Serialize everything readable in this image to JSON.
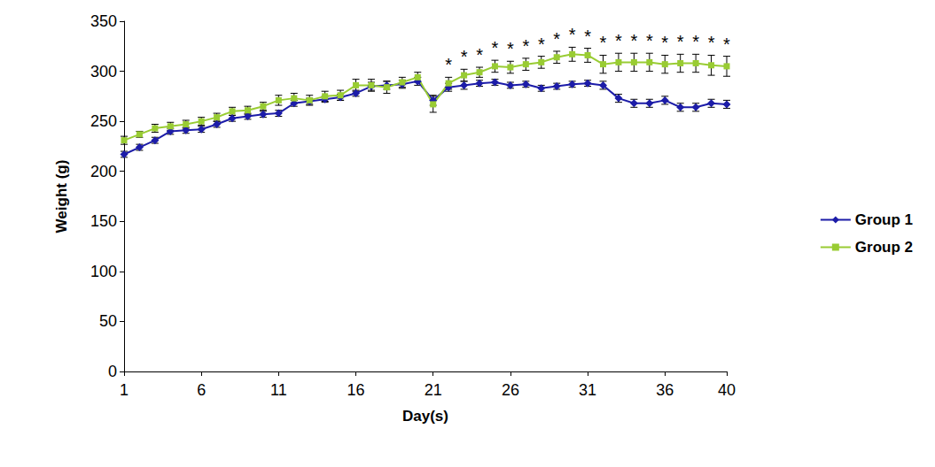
{
  "chart_data": {
    "type": "line",
    "x_label": "Day(s)",
    "y_label": "Weight (g)",
    "categories": [
      1,
      null,
      null,
      null,
      null,
      6,
      null,
      null,
      null,
      null,
      11,
      null,
      null,
      null,
      null,
      16,
      null,
      null,
      null,
      null,
      21,
      null,
      null,
      null,
      null,
      26,
      null,
      null,
      null,
      null,
      31,
      null,
      null,
      null,
      null,
      36,
      null,
      null,
      null,
      40
    ],
    "series": [
      {
        "name": "Group 1",
        "color": "#1c1ca8",
        "marker": "diamond",
        "values": [
          217,
          224,
          231,
          240,
          241,
          242,
          247,
          253,
          255,
          257,
          258,
          268,
          270,
          272,
          274,
          278,
          285,
          286,
          287,
          290,
          271,
          284,
          286,
          288,
          289,
          286,
          287,
          283,
          285,
          287,
          288,
          286,
          273,
          268,
          268,
          271,
          264,
          264,
          268,
          267
        ],
        "errors": [
          3,
          3,
          3,
          3,
          3,
          3,
          3,
          3,
          3,
          3,
          3,
          3,
          3,
          3,
          3,
          3,
          4,
          4,
          4,
          4,
          5,
          4,
          4,
          3,
          3,
          3,
          3,
          3,
          3,
          3,
          3,
          4,
          4,
          4,
          4,
          4,
          4,
          4,
          4,
          4
        ]
      },
      {
        "name": "Group 2",
        "color": "#99cc33",
        "marker": "square",
        "values": [
          231,
          237,
          243,
          245,
          247,
          250,
          254,
          260,
          261,
          265,
          271,
          273,
          271,
          275,
          276,
          286,
          286,
          284,
          289,
          294,
          267,
          288,
          296,
          299,
          305,
          304,
          307,
          309,
          314,
          317,
          316,
          307,
          309,
          309,
          309,
          307,
          308,
          308,
          306,
          305
        ],
        "errors": [
          4,
          3,
          4,
          4,
          4,
          4,
          4,
          4,
          4,
          4,
          5,
          5,
          5,
          5,
          5,
          6,
          6,
          6,
          5,
          5,
          8,
          6,
          6,
          5,
          6,
          6,
          6,
          6,
          6,
          7,
          7,
          9,
          9,
          9,
          9,
          9,
          9,
          9,
          10,
          10
        ]
      }
    ],
    "annotations": [
      {
        "x": 22,
        "text": "*"
      },
      {
        "x": 23,
        "text": "*"
      },
      {
        "x": 24,
        "text": "*"
      },
      {
        "x": 25,
        "text": "*"
      },
      {
        "x": 26,
        "text": "*"
      },
      {
        "x": 27,
        "text": "*"
      },
      {
        "x": 28,
        "text": "*"
      },
      {
        "x": 29,
        "text": "*"
      },
      {
        "x": 30,
        "text": "*"
      },
      {
        "x": 31,
        "text": "*"
      },
      {
        "x": 32,
        "text": "*"
      },
      {
        "x": 33,
        "text": "*"
      },
      {
        "x": 34,
        "text": "*"
      },
      {
        "x": 35,
        "text": "*"
      },
      {
        "x": 36,
        "text": "*"
      },
      {
        "x": 37,
        "text": "*"
      },
      {
        "x": 38,
        "text": "*"
      },
      {
        "x": 39,
        "text": "*"
      },
      {
        "x": 40,
        "text": "*"
      }
    ],
    "ylim": [
      0,
      350
    ],
    "yticks": [
      0,
      50,
      100,
      150,
      200,
      250,
      300,
      350
    ],
    "grid": false,
    "legend": "right"
  }
}
